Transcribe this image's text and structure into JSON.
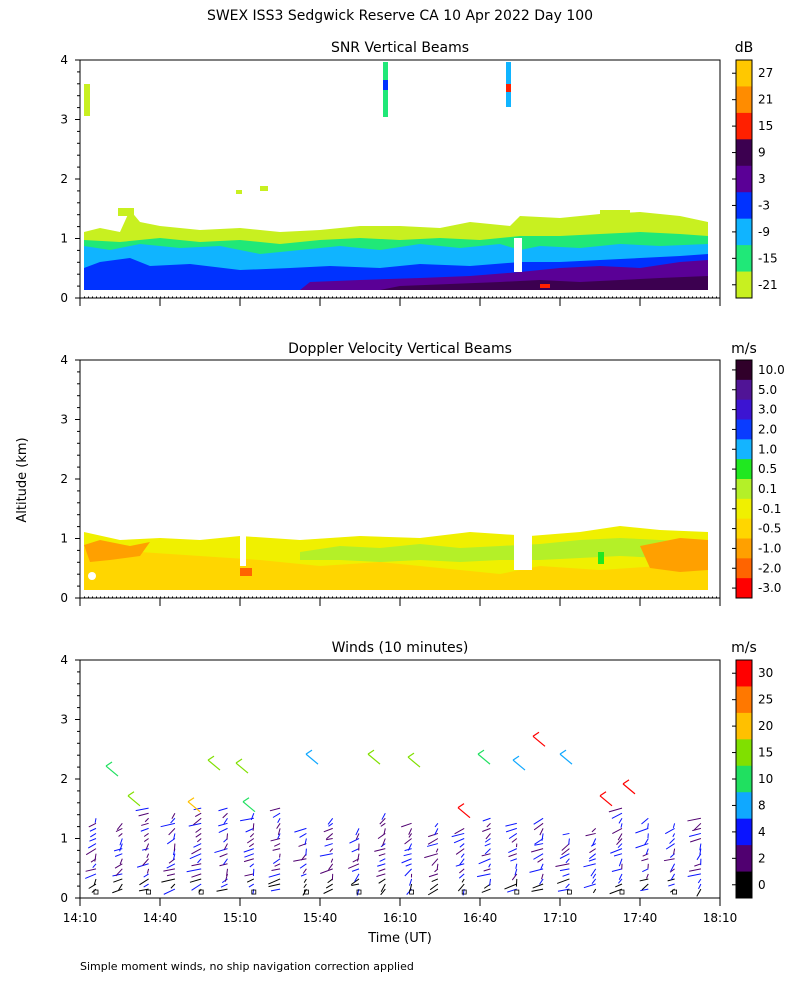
{
  "page_title": "SWEX ISS3 Sedgwick Reserve CA  10 Apr 2022 Day 100",
  "y_axis_label": "Altitude (km)",
  "x_axis_label": "Time (UT)",
  "footnote": "Simple moment winds, no ship navigation correction applied",
  "x_ticks": [
    "14:10",
    "14:40",
    "15:10",
    "15:40",
    "16:10",
    "16:40",
    "17:10",
    "17:40",
    "18:10"
  ],
  "panels": {
    "snr": {
      "title": "SNR Vertical Beams",
      "unit": "dB",
      "colorbar": {
        "labels": [
          "27",
          "21",
          "15",
          "9",
          "3",
          "-3",
          "-9",
          "-15",
          "-21"
        ],
        "colors": [
          "#ffc800",
          "#ff8c00",
          "#ff2000",
          "#3c0050",
          "#5a0096",
          "#0032ff",
          "#10b4ff",
          "#20e878",
          "#c8f020"
        ]
      }
    },
    "doppler": {
      "title": "Doppler Velocity Vertical Beams",
      "unit": "m/s",
      "colorbar": {
        "labels": [
          "10.0",
          "5.0",
          "3.0",
          "2.0",
          "1.0",
          "0.5",
          "0.1",
          "-0.1",
          "-0.5",
          "-1.0",
          "-2.0",
          "-3.0"
        ],
        "colors": [
          "#30002a",
          "#501496",
          "#3c14d2",
          "#0a3cff",
          "#14b4ff",
          "#20e820",
          "#b4f028",
          "#f0f000",
          "#ffd600",
          "#ffa000",
          "#ff6400",
          "#ff0000"
        ]
      }
    },
    "winds": {
      "title": "Winds (10 minutes)",
      "unit": "m/s",
      "colorbar": {
        "labels": [
          "30",
          "25",
          "20",
          "15",
          "10",
          "8",
          "4",
          "2",
          "0"
        ],
        "colors": [
          "#ff0000",
          "#ff7800",
          "#ffc000",
          "#80e000",
          "#20e060",
          "#10a8ff",
          "#0a14ff",
          "#500070",
          "#000000"
        ]
      }
    }
  },
  "chart_data": [
    {
      "type": "heatmap",
      "title": "SNR Vertical Beams",
      "xlabel": "",
      "ylabel": "Altitude (km)",
      "xlim": [
        "14:10",
        "18:10"
      ],
      "ylim": [
        0,
        4
      ],
      "yticks": [
        0,
        1,
        2,
        3,
        4
      ],
      "colorbar_unit": "dB",
      "colorbar_levels": [
        -21,
        -15,
        -9,
        -3,
        3,
        9,
        15,
        21,
        27
      ],
      "summary": "Echo layer from ~0.1 km to ~1.0-1.2 km for the whole period; strongest SNR (9-21 dB) below 0.5 km after ~16:45; isolated returns near 3-4 km around 14:15, 15:55 and 16:55."
    },
    {
      "type": "heatmap",
      "title": "Doppler Velocity Vertical Beams",
      "xlabel": "",
      "ylabel": "Altitude (km)",
      "xlim": [
        "14:10",
        "18:10"
      ],
      "ylim": [
        0,
        4
      ],
      "yticks": [
        0,
        1,
        2,
        3,
        4
      ],
      "colorbar_unit": "m/s",
      "colorbar_levels": [
        -3.0,
        -2.0,
        -1.0,
        -0.5,
        -0.1,
        0.1,
        0.5,
        1.0,
        2.0,
        3.0,
        5.0,
        10.0
      ],
      "summary": "Vertical velocities mostly between -1.0 and +0.5 m/s from ~0.1 km to ~1.1 km; gaps near 15:10 and 16:55."
    },
    {
      "type": "scatter",
      "title": "Winds (10 minutes)",
      "xlabel": "Time (UT)",
      "ylabel": "Altitude (km)",
      "xlim": [
        "14:10",
        "18:10"
      ],
      "ylim": [
        0,
        4
      ],
      "yticks": [
        0,
        1,
        2,
        3,
        4
      ],
      "colorbar_unit": "m/s",
      "colorbar_levels": [
        0,
        2,
        4,
        8,
        10,
        15,
        20,
        25,
        30
      ],
      "summary": "Wind barb profiles every 10 minutes, mostly 2-8 m/s below 1.5 km; isolated 15-30 m/s barbs near 1.3-2.6 km around 16:40-17:45."
    }
  ]
}
